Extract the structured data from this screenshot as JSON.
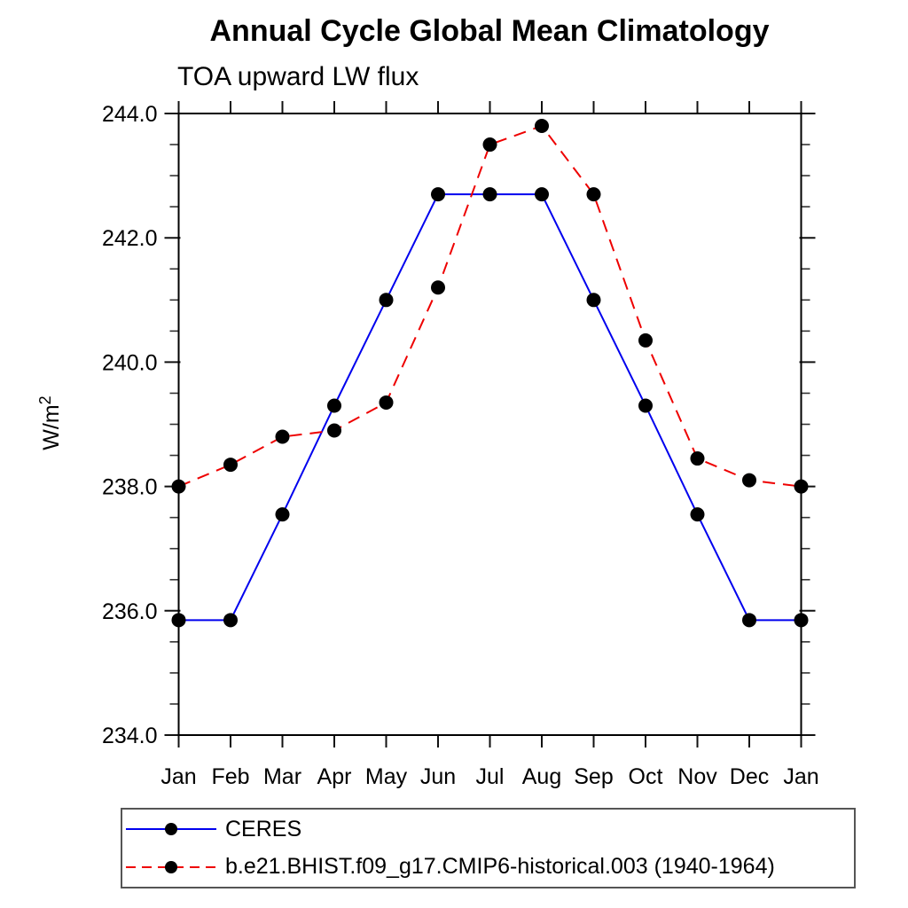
{
  "chart_data": {
    "type": "line",
    "title": "Annual Cycle Global Mean Climatology",
    "subtitle": "TOA upward LW flux",
    "xlabel": "",
    "ylabel": "W/m²",
    "x_categories": [
      "Jan",
      "Feb",
      "Mar",
      "Apr",
      "May",
      "Jun",
      "Jul",
      "Aug",
      "Sep",
      "Oct",
      "Nov",
      "Dec",
      "Jan"
    ],
    "ylim": [
      234.0,
      244.0
    ],
    "ytick_labels": [
      "234.0",
      "236.0",
      "238.0",
      "240.0",
      "242.0",
      "244.0"
    ],
    "ytick_major_step": 2.0,
    "ytick_minor_step": 0.5,
    "grid": false,
    "legend_position": "bottom-left",
    "series": [
      {
        "name": "CERES",
        "color": "#0000ee",
        "line_style": "solid",
        "marker": "filled-circle",
        "marker_color": "#000000",
        "values": [
          235.85,
          235.85,
          237.55,
          239.3,
          241.0,
          242.7,
          242.7,
          242.7,
          241.0,
          239.3,
          237.55,
          235.85,
          235.85
        ]
      },
      {
        "name": "b.e21.BHIST.f09_g17.CMIP6-historical.003 (1940-1964)",
        "color": "#ee0000",
        "line_style": "dashed",
        "marker": "filled-circle",
        "marker_color": "#000000",
        "values": [
          238.0,
          238.35,
          238.8,
          238.9,
          239.35,
          241.2,
          243.5,
          243.8,
          242.7,
          240.35,
          238.45,
          238.1,
          238.0
        ]
      }
    ]
  }
}
